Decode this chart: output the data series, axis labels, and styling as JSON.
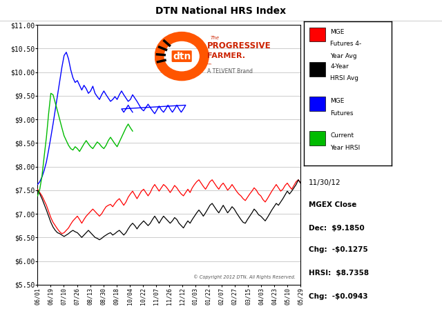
{
  "title": "DTN National HRS Index",
  "x_labels": [
    "06/01",
    "06/19",
    "07/10",
    "07/26",
    "08/13",
    "08/30",
    "09/18",
    "10/04",
    "10/22",
    "11/07",
    "11/26",
    "12/12",
    "01/03",
    "01/22",
    "02/07",
    "02/27",
    "03/15",
    "04/03",
    "04/23",
    "05/10",
    "05/29"
  ],
  "y_ticks": [
    5.5,
    6.0,
    6.5,
    7.0,
    7.5,
    8.0,
    8.5,
    9.0,
    9.5,
    10.0,
    10.5,
    11.0
  ],
  "ylim": [
    5.5,
    11.0
  ],
  "copyright_text": "© Copyright 2012 DTN. All Rights Reserved.",
  "date_text": "11/30/12",
  "mgex_close_label": "MGEX Close",
  "dec_text": "Dec:  $9.1850",
  "chg1_text": "Chg:  -$0.1275",
  "hrsi_text": "HRSI:  $8.7358",
  "chg2_text": "Chg:  -$0.0943",
  "legend_entries": [
    {
      "label": "MGE\nFutures 4-\nYear Avg",
      "color": "#FF0000"
    },
    {
      "label": "4-Year\nHRSI Avg",
      "color": "#000000"
    },
    {
      "label": "MGE\nFutures",
      "color": "#0000FF"
    },
    {
      "label": "Current\nYear HRSI",
      "color": "#00BB00"
    }
  ],
  "bg_color": "#FFFFFF",
  "grid_color": "#CCCCCC",
  "red_line_x": [
    0,
    1,
    2,
    3,
    4,
    5,
    6,
    7,
    8,
    9,
    10,
    11,
    12,
    13,
    14,
    15,
    16,
    17,
    18,
    19,
    20,
    21,
    22,
    23,
    24,
    25,
    26,
    27,
    28,
    29,
    30,
    31,
    32,
    33,
    34,
    35,
    36,
    37,
    38,
    39,
    40,
    41,
    42,
    43,
    44,
    45,
    46,
    47,
    48,
    49,
    50,
    51,
    52,
    53,
    54,
    55,
    56,
    57,
    58,
    59,
    60,
    61,
    62,
    63,
    64,
    65,
    66,
    67,
    68,
    69,
    70,
    71,
    72,
    73,
    74,
    75,
    76,
    77,
    78,
    79,
    80,
    81,
    82,
    83,
    84,
    85,
    86,
    87,
    88,
    89,
    90,
    91,
    92,
    93,
    94,
    95,
    96,
    97,
    98,
    99,
    100,
    101,
    102,
    103,
    104,
    105,
    106,
    107,
    108,
    109,
    110,
    111,
    112,
    113,
    114,
    115,
    116,
    117,
    118,
    119
  ],
  "red_line_y": [
    7.52,
    7.45,
    7.38,
    7.28,
    7.18,
    7.05,
    6.92,
    6.82,
    6.75,
    6.68,
    6.62,
    6.58,
    6.6,
    6.65,
    6.7,
    6.78,
    6.85,
    6.9,
    6.95,
    6.88,
    6.8,
    6.88,
    6.95,
    7.0,
    7.05,
    7.1,
    7.05,
    7.0,
    6.95,
    7.0,
    7.08,
    7.15,
    7.18,
    7.2,
    7.15,
    7.22,
    7.28,
    7.32,
    7.25,
    7.18,
    7.25,
    7.35,
    7.42,
    7.48,
    7.4,
    7.32,
    7.4,
    7.48,
    7.52,
    7.45,
    7.38,
    7.45,
    7.55,
    7.62,
    7.55,
    7.48,
    7.55,
    7.62,
    7.58,
    7.52,
    7.45,
    7.52,
    7.6,
    7.55,
    7.48,
    7.42,
    7.38,
    7.45,
    7.52,
    7.45,
    7.55,
    7.62,
    7.68,
    7.72,
    7.65,
    7.58,
    7.52,
    7.6,
    7.68,
    7.72,
    7.65,
    7.58,
    7.52,
    7.6,
    7.65,
    7.58,
    7.5,
    7.55,
    7.62,
    7.55,
    7.48,
    7.42,
    7.38,
    7.32,
    7.28,
    7.35,
    7.42,
    7.48,
    7.55,
    7.5,
    7.42,
    7.38,
    7.3,
    7.25,
    7.32,
    7.4,
    7.48,
    7.55,
    7.62,
    7.55,
    7.48,
    7.52,
    7.6,
    7.65,
    7.58,
    7.52,
    7.6,
    7.68,
    7.72,
    7.65
  ],
  "black_line_x": [
    0,
    1,
    2,
    3,
    4,
    5,
    6,
    7,
    8,
    9,
    10,
    11,
    12,
    13,
    14,
    15,
    16,
    17,
    18,
    19,
    20,
    21,
    22,
    23,
    24,
    25,
    26,
    27,
    28,
    29,
    30,
    31,
    32,
    33,
    34,
    35,
    36,
    37,
    38,
    39,
    40,
    41,
    42,
    43,
    44,
    45,
    46,
    47,
    48,
    49,
    50,
    51,
    52,
    53,
    54,
    55,
    56,
    57,
    58,
    59,
    60,
    61,
    62,
    63,
    64,
    65,
    66,
    67,
    68,
    69,
    70,
    71,
    72,
    73,
    74,
    75,
    76,
    77,
    78,
    79,
    80,
    81,
    82,
    83,
    84,
    85,
    86,
    87,
    88,
    89,
    90,
    91,
    92,
    93,
    94,
    95,
    96,
    97,
    98,
    99,
    100,
    101,
    102,
    103,
    104,
    105,
    106,
    107,
    108,
    109,
    110,
    111,
    112,
    113,
    114,
    115,
    116,
    117,
    118,
    119
  ],
  "black_line_y": [
    7.5,
    7.42,
    7.32,
    7.2,
    7.08,
    6.95,
    6.82,
    6.72,
    6.65,
    6.6,
    6.58,
    6.55,
    6.52,
    6.55,
    6.58,
    6.62,
    6.65,
    6.62,
    6.6,
    6.55,
    6.5,
    6.55,
    6.6,
    6.65,
    6.6,
    6.55,
    6.5,
    6.48,
    6.45,
    6.48,
    6.52,
    6.55,
    6.58,
    6.6,
    6.55,
    6.58,
    6.62,
    6.65,
    6.6,
    6.55,
    6.6,
    6.68,
    6.75,
    6.8,
    6.75,
    6.68,
    6.75,
    6.8,
    6.85,
    6.8,
    6.75,
    6.8,
    6.88,
    6.95,
    6.88,
    6.8,
    6.88,
    6.95,
    6.9,
    6.85,
    6.8,
    6.85,
    6.92,
    6.88,
    6.8,
    6.75,
    6.7,
    6.78,
    6.85,
    6.8,
    6.88,
    6.95,
    7.02,
    7.08,
    7.02,
    6.95,
    7.02,
    7.1,
    7.18,
    7.22,
    7.15,
    7.08,
    7.02,
    7.1,
    7.18,
    7.1,
    7.02,
    7.08,
    7.15,
    7.1,
    7.02,
    6.95,
    6.88,
    6.82,
    6.8,
    6.88,
    6.95,
    7.02,
    7.1,
    7.05,
    6.98,
    6.95,
    6.9,
    6.85,
    6.92,
    7.0,
    7.08,
    7.15,
    7.22,
    7.18,
    7.25,
    7.32,
    7.4,
    7.48,
    7.42,
    7.48,
    7.55,
    7.62,
    7.72,
    7.65
  ],
  "blue_line_x": [
    0,
    1,
    2,
    3,
    4,
    5,
    6,
    7,
    8,
    9,
    10,
    11,
    12,
    13,
    14,
    15,
    16,
    17,
    18,
    19,
    20,
    21,
    22,
    23,
    24,
    25,
    26,
    27,
    28,
    29,
    30,
    31,
    32,
    33,
    34,
    35,
    36,
    37,
    38,
    39,
    40,
    41,
    42,
    43,
    44,
    45,
    46,
    47,
    48,
    49,
    50,
    51,
    52,
    53,
    54,
    55,
    56,
    57,
    58,
    59,
    60,
    61,
    62,
    63,
    64,
    65,
    66,
    67,
    38,
    39,
    40,
    41,
    42,
    43
  ],
  "blue_line_y": [
    7.62,
    7.68,
    7.78,
    7.92,
    8.1,
    8.35,
    8.62,
    8.9,
    9.2,
    9.5,
    9.8,
    10.1,
    10.35,
    10.42,
    10.28,
    10.05,
    9.88,
    9.78,
    9.82,
    9.72,
    9.62,
    9.72,
    9.65,
    9.55,
    9.6,
    9.7,
    9.55,
    9.48,
    9.42,
    9.52,
    9.6,
    9.52,
    9.45,
    9.38,
    9.42,
    9.48,
    9.42,
    9.52,
    9.6,
    9.52,
    9.45,
    9.38,
    9.42,
    9.52,
    9.45,
    9.38,
    9.3,
    9.22,
    9.18,
    9.25,
    9.32,
    9.25,
    9.18,
    9.12,
    9.2,
    9.28,
    9.2,
    9.15,
    9.22,
    9.3,
    9.22,
    9.15,
    9.22,
    9.3,
    9.22,
    9.15,
    9.22,
    9.3,
    9.22,
    9.15,
    9.22,
    9.3,
    9.22,
    9.15
  ],
  "green_line_x": [
    0,
    1,
    2,
    3,
    4,
    5,
    6,
    7,
    8,
    9,
    10,
    11,
    12,
    13,
    14,
    15,
    16,
    17,
    18,
    19,
    20,
    21,
    22,
    23,
    24,
    25,
    26,
    27,
    28,
    29,
    30,
    31,
    32,
    33,
    34,
    35,
    36,
    37,
    38,
    39,
    40,
    41,
    42,
    43
  ],
  "green_line_y": [
    7.38,
    7.52,
    7.8,
    8.22,
    8.62,
    9.12,
    9.55,
    9.52,
    9.35,
    9.18,
    9.0,
    8.82,
    8.65,
    8.55,
    8.45,
    8.38,
    8.35,
    8.42,
    8.38,
    8.32,
    8.4,
    8.48,
    8.55,
    8.48,
    8.42,
    8.38,
    8.45,
    8.52,
    8.48,
    8.42,
    8.38,
    8.45,
    8.55,
    8.62,
    8.55,
    8.48,
    8.42,
    8.52,
    8.62,
    8.72,
    8.82,
    8.9,
    8.82,
    8.75
  ],
  "n_points": 120
}
